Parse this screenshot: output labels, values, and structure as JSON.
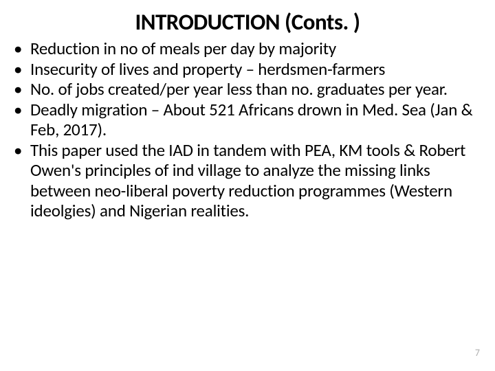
{
  "title": "INTRODUCTION (Conts. )",
  "bullets": [
    "Reduction in no of meals per day by majority",
    "Insecurity of lives and property – herdsmen-farmers",
    "No. of jobs created/per year less than no. graduates per year.",
    "Deadly migration – About 521 Africans drown in Med. Sea (Jan & Feb, 2017).",
    "This paper used the IAD in tandem with PEA, KM tools & Robert Owen's principles of ind village to analyze the missing links between neo-liberal poverty reduction programmes (Western ideolgies) and Nigerian realities."
  ],
  "pageNumber": "7",
  "styles": {
    "background_color": "#ffffff",
    "text_color": "#000000",
    "page_number_color": "#b0b0b0",
    "title_fontsize": 33,
    "title_weight": 700,
    "bullet_fontsize": 25,
    "font_family": "Calibri, Arial, sans-serif"
  }
}
